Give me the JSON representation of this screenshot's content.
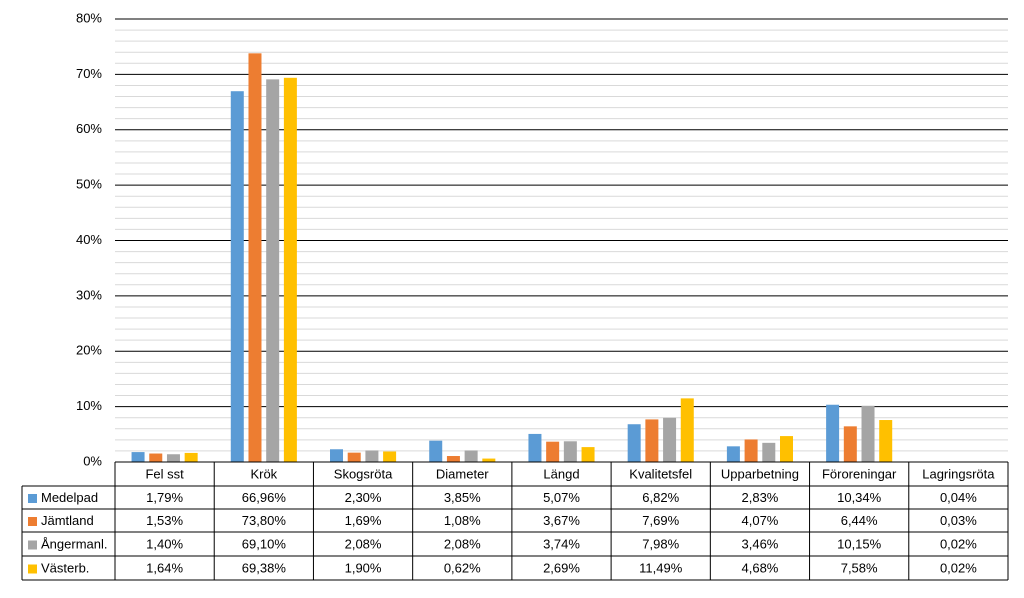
{
  "chart_data": {
    "type": "bar",
    "categories": [
      "Fel sst",
      "Krök",
      "Skogsröta",
      "Diameter",
      "Längd",
      "Kvalitetsfel",
      "Upparbetning",
      "Föroreningar",
      "Lagringsröta"
    ],
    "series": [
      {
        "name": "Medelpad",
        "color": "#5b9bd5",
        "values": [
          1.79,
          66.96,
          2.3,
          3.85,
          5.07,
          6.82,
          2.83,
          10.34,
          0.04
        ],
        "value_labels": [
          "1,79%",
          "66,96%",
          "2,30%",
          "3,85%",
          "5,07%",
          "6,82%",
          "2,83%",
          "10,34%",
          "0,04%"
        ]
      },
      {
        "name": "Jämtland",
        "color": "#ed7d31",
        "values": [
          1.53,
          73.8,
          1.69,
          1.08,
          3.67,
          7.69,
          4.07,
          6.44,
          0.03
        ],
        "value_labels": [
          "1,53%",
          "73,80%",
          "1,69%",
          "1,08%",
          "3,67%",
          "7,69%",
          "4,07%",
          "6,44%",
          "0,03%"
        ]
      },
      {
        "name": "Ångermanl.",
        "color": "#a5a5a5",
        "values": [
          1.4,
          69.1,
          2.08,
          2.08,
          3.74,
          7.98,
          3.46,
          10.15,
          0.02
        ],
        "value_labels": [
          "1,40%",
          "69,10%",
          "2,08%",
          "2,08%",
          "3,74%",
          "7,98%",
          "3,46%",
          "10,15%",
          "0,02%"
        ]
      },
      {
        "name": "Västerb.",
        "color": "#ffc000",
        "values": [
          1.64,
          69.38,
          1.9,
          0.62,
          2.69,
          11.49,
          4.68,
          7.58,
          0.02
        ],
        "value_labels": [
          "1,64%",
          "69,38%",
          "1,90%",
          "0,62%",
          "2,69%",
          "11,49%",
          "4,68%",
          "7,58%",
          "0,02%"
        ]
      }
    ],
    "ylim": [
      0,
      80
    ],
    "yticks": [
      {
        "value": 0,
        "label": "0%"
      },
      {
        "value": 10,
        "label": "10%"
      },
      {
        "value": 20,
        "label": "20%"
      },
      {
        "value": 30,
        "label": "30%"
      },
      {
        "value": 40,
        "label": "40%"
      },
      {
        "value": 50,
        "label": "50%"
      },
      {
        "value": 60,
        "label": "60%"
      },
      {
        "value": 70,
        "label": "70%"
      },
      {
        "value": 80,
        "label": "80%"
      }
    ],
    "minor_yticks": [
      2,
      4,
      6,
      8,
      12,
      14,
      16,
      18,
      22,
      24,
      26,
      28,
      32,
      34,
      36,
      38,
      42,
      44,
      46,
      48,
      52,
      54,
      56,
      58,
      62,
      64,
      66,
      68,
      72,
      74,
      76,
      78
    ],
    "grid": true
  }
}
